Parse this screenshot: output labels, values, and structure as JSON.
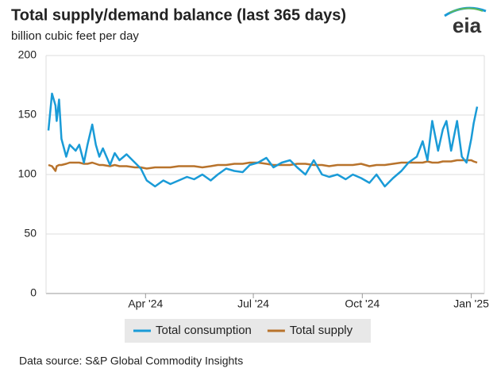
{
  "chart_data": {
    "type": "line",
    "title": "Total supply/demand balance (last 365 days)",
    "subtitle": "billion cubic feet per day",
    "logo": "eia",
    "source": "Data source: S&P Global Commodity Insights",
    "x": [
      2,
      5,
      8,
      9,
      11,
      13,
      17,
      20,
      25,
      28,
      32,
      35,
      39,
      42,
      45,
      48,
      54,
      58,
      62,
      68,
      75,
      80,
      85,
      92,
      99,
      105,
      112,
      119,
      125,
      132,
      139,
      145,
      152,
      159,
      166,
      172,
      179,
      186,
      192,
      199,
      206,
      212,
      219,
      226,
      233,
      239,
      246,
      253,
      259,
      266,
      273,
      279,
      286,
      293,
      300,
      306,
      313,
      318,
      322,
      326,
      331,
      335,
      338,
      342,
      347,
      351,
      355,
      359,
      361,
      364
    ],
    "xlim": [
      0,
      370
    ],
    "xticks": [
      {
        "value": 84,
        "label": "Apr '24"
      },
      {
        "value": 175,
        "label": "Jul '24"
      },
      {
        "value": 267,
        "label": "Oct '24"
      },
      {
        "value": 359,
        "label": "Jan '25"
      }
    ],
    "ylim": [
      0,
      200
    ],
    "yticks": [
      0,
      50,
      100,
      150,
      200
    ],
    "grid": true,
    "legend": "bottom",
    "series": [
      {
        "name": "Total consumption",
        "color": "#1a9bd7",
        "values": [
          137,
          168,
          158,
          145,
          163,
          130,
          115,
          125,
          120,
          125,
          110,
          125,
          142,
          125,
          115,
          122,
          108,
          118,
          112,
          117,
          110,
          105,
          95,
          90,
          95,
          92,
          95,
          98,
          96,
          100,
          95,
          100,
          105,
          103,
          102,
          108,
          110,
          114,
          106,
          110,
          112,
          106,
          100,
          112,
          100,
          98,
          100,
          96,
          100,
          97,
          93,
          100,
          90,
          97,
          103,
          110,
          115,
          128,
          112,
          145,
          120,
          138,
          145,
          120,
          145,
          115,
          110,
          130,
          143,
          157
        ]
      },
      {
        "name": "Total supply",
        "color": "#b8732c",
        "values": [
          108,
          107,
          103,
          107,
          108,
          108,
          109,
          110,
          110,
          110,
          109,
          109,
          110,
          109,
          108,
          108,
          107,
          108,
          107,
          107,
          106,
          106,
          105,
          106,
          106,
          106,
          107,
          107,
          107,
          106,
          107,
          108,
          108,
          109,
          109,
          110,
          110,
          109,
          108,
          108,
          108,
          109,
          109,
          108,
          108,
          107,
          108,
          108,
          108,
          109,
          107,
          108,
          108,
          109,
          110,
          110,
          110,
          110,
          111,
          110,
          110,
          111,
          111,
          111,
          112,
          112,
          112,
          112,
          111,
          110
        ]
      }
    ]
  }
}
